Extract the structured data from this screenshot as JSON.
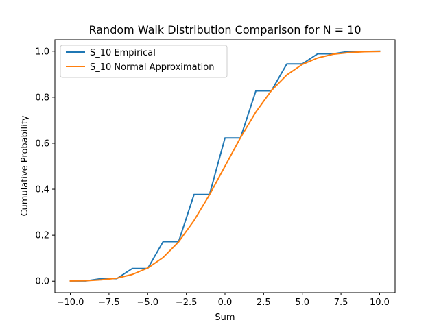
{
  "chart_data": {
    "type": "line",
    "title": "Random Walk Distribution Comparison for N = 10",
    "xlabel": "Sum",
    "ylabel": "Cumulative Probability",
    "xlim": [
      -11,
      11
    ],
    "ylim": [
      -0.05,
      1.05
    ],
    "xticks": [
      -10,
      -7.5,
      -5,
      -2.5,
      0,
      2.5,
      5,
      7.5,
      10
    ],
    "xtick_labels": [
      "−10.0",
      "−7.5",
      "−5.0",
      "−2.5",
      "0.0",
      "2.5",
      "5.0",
      "7.5",
      "10.0"
    ],
    "yticks": [
      0,
      0.2,
      0.4,
      0.6,
      0.8,
      1.0
    ],
    "ytick_labels": [
      "0.0",
      "0.2",
      "0.4",
      "0.6",
      "0.8",
      "1.0"
    ],
    "grid": false,
    "legend_position": "upper-left",
    "series": [
      {
        "name": "S_10 Empirical",
        "color": "#1f77b4",
        "x": [
          -10,
          -9,
          -8,
          -7,
          -6,
          -5,
          -4,
          -3,
          -2,
          -1,
          0,
          1,
          2,
          3,
          4,
          5,
          6,
          7,
          8,
          9,
          10
        ],
        "y": [
          0.001,
          0.001,
          0.011,
          0.011,
          0.055,
          0.055,
          0.172,
          0.172,
          0.377,
          0.377,
          0.623,
          0.623,
          0.828,
          0.828,
          0.945,
          0.945,
          0.989,
          0.989,
          0.999,
          0.999,
          1.0
        ]
      },
      {
        "name": "S_10 Normal Approximation",
        "color": "#ff7f0e",
        "x": [
          -10,
          -9,
          -8,
          -7,
          -6,
          -5,
          -4,
          -3,
          -2,
          -1,
          0,
          1,
          2,
          3,
          4,
          5,
          6,
          7,
          8,
          9,
          10
        ],
        "y": [
          0.001,
          0.002,
          0.006,
          0.013,
          0.029,
          0.057,
          0.103,
          0.171,
          0.264,
          0.376,
          0.5,
          0.624,
          0.736,
          0.829,
          0.897,
          0.943,
          0.971,
          0.987,
          0.994,
          0.998,
          0.999
        ]
      }
    ]
  }
}
